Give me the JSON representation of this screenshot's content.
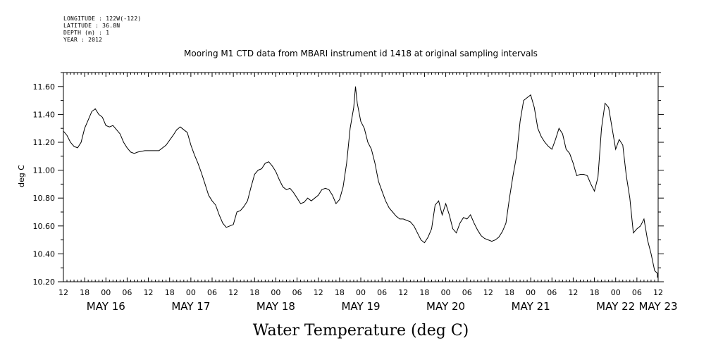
{
  "header": {
    "lines": [
      "LONGITUDE : 122W(-122)",
      "LATITUDE : 36.8N",
      "DEPTH (m) : 1",
      "YEAR : 2012"
    ]
  },
  "chart_data": {
    "type": "line",
    "title": "Mooring M1 CTD data from MBARI instrument id 1418 at original sampling intervals",
    "xlabel": "Water Temperature (deg C)",
    "ylabel": "deg C",
    "ylim": [
      10.2,
      11.7
    ],
    "y_ticks": [
      "10.20",
      "10.40",
      "10.60",
      "10.80",
      "11.00",
      "11.20",
      "11.40",
      "11.60"
    ],
    "x_range_hours": [
      0,
      168
    ],
    "x_tick_labels": [
      "12",
      "18",
      "00",
      "06",
      "12",
      "18",
      "00",
      "06",
      "12",
      "18",
      "00",
      "06",
      "12",
      "18",
      "00",
      "06",
      "12",
      "18",
      "00",
      "06",
      "12",
      "18",
      "00",
      "06",
      "12",
      "18",
      "00",
      "06",
      "12"
    ],
    "day_labels": [
      {
        "label": "MAY 16",
        "hour": 12
      },
      {
        "label": "MAY 17",
        "hour": 36
      },
      {
        "label": "MAY 18",
        "hour": 60
      },
      {
        "label": "MAY 19",
        "hour": 84
      },
      {
        "label": "MAY 20",
        "hour": 108
      },
      {
        "label": "MAY 21",
        "hour": 132
      },
      {
        "label": "MAY 22",
        "hour": 156
      },
      {
        "label": "MAY 23",
        "hour": 168
      }
    ],
    "series": [
      {
        "color": "#000000",
        "points": [
          [
            0,
            11.28
          ],
          [
            1,
            11.25
          ],
          [
            2,
            11.2
          ],
          [
            3,
            11.17
          ],
          [
            4,
            11.16
          ],
          [
            5,
            11.2
          ],
          [
            6,
            11.3
          ],
          [
            7,
            11.36
          ],
          [
            8,
            11.42
          ],
          [
            9,
            11.44
          ],
          [
            10,
            11.4
          ],
          [
            11,
            11.38
          ],
          [
            12,
            11.32
          ],
          [
            13,
            11.31
          ],
          [
            14,
            11.32
          ],
          [
            15,
            11.29
          ],
          [
            16,
            11.26
          ],
          [
            17,
            11.2
          ],
          [
            18,
            11.16
          ],
          [
            19,
            11.13
          ],
          [
            20,
            11.12
          ],
          [
            21,
            11.13
          ],
          [
            23,
            11.14
          ],
          [
            25,
            11.14
          ],
          [
            27,
            11.14
          ],
          [
            29,
            11.18
          ],
          [
            31,
            11.25
          ],
          [
            32,
            11.29
          ],
          [
            33,
            11.31
          ],
          [
            34,
            11.29
          ],
          [
            35,
            11.27
          ],
          [
            36,
            11.18
          ],
          [
            37,
            11.11
          ],
          [
            38,
            11.05
          ],
          [
            39,
            10.98
          ],
          [
            40,
            10.9
          ],
          [
            41,
            10.82
          ],
          [
            42,
            10.78
          ],
          [
            43,
            10.75
          ],
          [
            44,
            10.68
          ],
          [
            45,
            10.62
          ],
          [
            46,
            10.59
          ],
          [
            47,
            10.6
          ],
          [
            48,
            10.61
          ],
          [
            49,
            10.7
          ],
          [
            50,
            10.71
          ],
          [
            51,
            10.74
          ],
          [
            52,
            10.78
          ],
          [
            53,
            10.88
          ],
          [
            54,
            10.97
          ],
          [
            55,
            11.0
          ],
          [
            56,
            11.01
          ],
          [
            57,
            11.05
          ],
          [
            58,
            11.06
          ],
          [
            59,
            11.03
          ],
          [
            60,
            10.99
          ],
          [
            61,
            10.93
          ],
          [
            62,
            10.88
          ],
          [
            63,
            10.86
          ],
          [
            64,
            10.87
          ],
          [
            65,
            10.84
          ],
          [
            66,
            10.8
          ],
          [
            67,
            10.76
          ],
          [
            68,
            10.77
          ],
          [
            69,
            10.8
          ],
          [
            70,
            10.78
          ],
          [
            71,
            10.8
          ],
          [
            72,
            10.82
          ],
          [
            73,
            10.86
          ],
          [
            74,
            10.87
          ],
          [
            75,
            10.86
          ],
          [
            76,
            10.82
          ],
          [
            77,
            10.76
          ],
          [
            78,
            10.79
          ],
          [
            79,
            10.88
          ],
          [
            80,
            11.05
          ],
          [
            81,
            11.3
          ],
          [
            82,
            11.45
          ],
          [
            82.5,
            11.6
          ],
          [
            83,
            11.48
          ],
          [
            84,
            11.35
          ],
          [
            85,
            11.3
          ],
          [
            86,
            11.2
          ],
          [
            87,
            11.15
          ],
          [
            88,
            11.05
          ],
          [
            89,
            10.92
          ],
          [
            90,
            10.85
          ],
          [
            91,
            10.78
          ],
          [
            92,
            10.73
          ],
          [
            93,
            10.7
          ],
          [
            94,
            10.67
          ],
          [
            95,
            10.65
          ],
          [
            96,
            10.65
          ],
          [
            97,
            10.64
          ],
          [
            98,
            10.63
          ],
          [
            99,
            10.6
          ],
          [
            100,
            10.55
          ],
          [
            101,
            10.5
          ],
          [
            102,
            10.48
          ],
          [
            103,
            10.52
          ],
          [
            104,
            10.58
          ],
          [
            105,
            10.75
          ],
          [
            106,
            10.78
          ],
          [
            107,
            10.68
          ],
          [
            108,
            10.76
          ],
          [
            109,
            10.68
          ],
          [
            110,
            10.58
          ],
          [
            111,
            10.55
          ],
          [
            112,
            10.62
          ],
          [
            113,
            10.66
          ],
          [
            114,
            10.65
          ],
          [
            115,
            10.68
          ],
          [
            116,
            10.62
          ],
          [
            117,
            10.57
          ],
          [
            118,
            10.53
          ],
          [
            119,
            10.51
          ],
          [
            120,
            10.5
          ],
          [
            121,
            10.49
          ],
          [
            122,
            10.5
          ],
          [
            123,
            10.52
          ],
          [
            124,
            10.56
          ],
          [
            125,
            10.62
          ],
          [
            126,
            10.8
          ],
          [
            127,
            10.96
          ],
          [
            128,
            11.1
          ],
          [
            129,
            11.35
          ],
          [
            130,
            11.5
          ],
          [
            131,
            11.52
          ],
          [
            132,
            11.54
          ],
          [
            133,
            11.45
          ],
          [
            134,
            11.3
          ],
          [
            135,
            11.24
          ],
          [
            136,
            11.2
          ],
          [
            137,
            11.17
          ],
          [
            138,
            11.15
          ],
          [
            139,
            11.22
          ],
          [
            140,
            11.3
          ],
          [
            141,
            11.26
          ],
          [
            142,
            11.15
          ],
          [
            143,
            11.12
          ],
          [
            144,
            11.05
          ],
          [
            145,
            10.96
          ],
          [
            146,
            10.97
          ],
          [
            147,
            10.97
          ],
          [
            148,
            10.96
          ],
          [
            149,
            10.9
          ],
          [
            150,
            10.85
          ],
          [
            151,
            10.95
          ],
          [
            152,
            11.3
          ],
          [
            153,
            11.48
          ],
          [
            154,
            11.45
          ],
          [
            155,
            11.3
          ],
          [
            156,
            11.15
          ],
          [
            157,
            11.22
          ],
          [
            158,
            11.18
          ],
          [
            159,
            10.96
          ],
          [
            160,
            10.8
          ],
          [
            161,
            10.55
          ],
          [
            162,
            10.58
          ],
          [
            163,
            10.6
          ],
          [
            164,
            10.65
          ],
          [
            165,
            10.5
          ],
          [
            166,
            10.4
          ],
          [
            167,
            10.28
          ],
          [
            168,
            10.26
          ],
          [
            169,
            10.26
          ],
          [
            170,
            10.24
          ],
          [
            171,
            10.24
          ],
          [
            172,
            10.23
          ]
        ]
      }
    ]
  }
}
